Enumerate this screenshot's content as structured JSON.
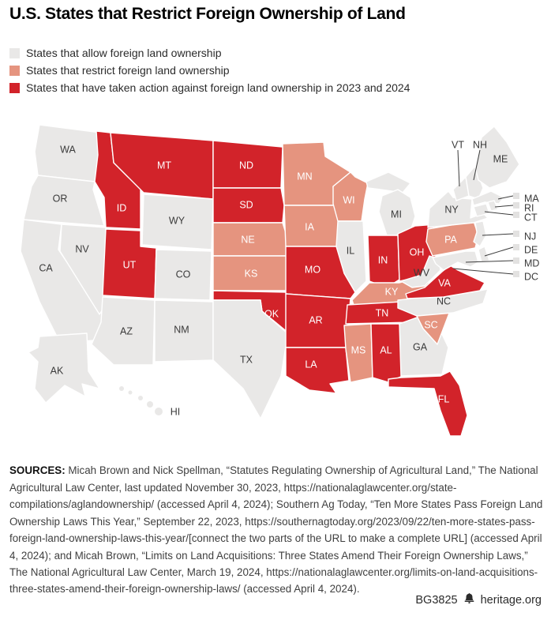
{
  "title": "U.S. States that Restrict Foreign Ownership of Land",
  "legend": {
    "items": [
      {
        "key": "allow",
        "label": "States that allow foreign land ownership",
        "color": "#e9e8e7",
        "text_color": "#3a3a3a"
      },
      {
        "key": "restrict",
        "label": "States that restrict foreign land ownership",
        "color": "#e5947f",
        "text_color": "#ffffff"
      },
      {
        "key": "action",
        "label": "States that have taken action against foreign land ownership in 2023 and 2024",
        "color": "#d2232a",
        "text_color": "#ffffff"
      }
    ]
  },
  "map": {
    "states": [
      {
        "abbr": "WA",
        "category": "allow"
      },
      {
        "abbr": "OR",
        "category": "allow"
      },
      {
        "abbr": "CA",
        "category": "allow"
      },
      {
        "abbr": "NV",
        "category": "allow"
      },
      {
        "abbr": "ID",
        "category": "action"
      },
      {
        "abbr": "MT",
        "category": "action"
      },
      {
        "abbr": "WY",
        "category": "allow"
      },
      {
        "abbr": "UT",
        "category": "action"
      },
      {
        "abbr": "CO",
        "category": "allow"
      },
      {
        "abbr": "AZ",
        "category": "allow"
      },
      {
        "abbr": "NM",
        "category": "allow"
      },
      {
        "abbr": "AK",
        "category": "allow"
      },
      {
        "abbr": "HI",
        "category": "allow"
      },
      {
        "abbr": "ND",
        "category": "action"
      },
      {
        "abbr": "SD",
        "category": "action"
      },
      {
        "abbr": "NE",
        "category": "restrict"
      },
      {
        "abbr": "KS",
        "category": "restrict"
      },
      {
        "abbr": "OK",
        "category": "action"
      },
      {
        "abbr": "TX",
        "category": "allow"
      },
      {
        "abbr": "MN",
        "category": "restrict"
      },
      {
        "abbr": "IA",
        "category": "restrict"
      },
      {
        "abbr": "MO",
        "category": "action"
      },
      {
        "abbr": "AR",
        "category": "action"
      },
      {
        "abbr": "LA",
        "category": "action"
      },
      {
        "abbr": "WI",
        "category": "restrict"
      },
      {
        "abbr": "IL",
        "category": "allow"
      },
      {
        "abbr": "MS",
        "category": "restrict"
      },
      {
        "abbr": "MI",
        "category": "allow"
      },
      {
        "abbr": "IN",
        "category": "action"
      },
      {
        "abbr": "OH",
        "category": "action"
      },
      {
        "abbr": "KY",
        "category": "restrict"
      },
      {
        "abbr": "TN",
        "category": "action"
      },
      {
        "abbr": "AL",
        "category": "action"
      },
      {
        "abbr": "GA",
        "category": "allow"
      },
      {
        "abbr": "FL",
        "category": "action"
      },
      {
        "abbr": "SC",
        "category": "restrict"
      },
      {
        "abbr": "NC",
        "category": "allow"
      },
      {
        "abbr": "VA",
        "category": "action"
      },
      {
        "abbr": "WV",
        "category": "allow"
      },
      {
        "abbr": "PA",
        "category": "restrict"
      },
      {
        "abbr": "NY",
        "category": "allow"
      },
      {
        "abbr": "NJ",
        "category": "allow"
      },
      {
        "abbr": "DE",
        "category": "allow"
      },
      {
        "abbr": "MD",
        "category": "allow"
      },
      {
        "abbr": "VT",
        "category": "allow"
      },
      {
        "abbr": "NH",
        "category": "allow"
      },
      {
        "abbr": "MA",
        "category": "allow"
      },
      {
        "abbr": "CT",
        "category": "allow"
      },
      {
        "abbr": "RI",
        "category": "allow"
      },
      {
        "abbr": "ME",
        "category": "allow"
      },
      {
        "abbr": "DC",
        "category": "allow"
      }
    ],
    "callouts_top": [
      "VT",
      "NH"
    ],
    "callouts_right": [
      "MA",
      "RI",
      "CT",
      "NJ",
      "DE",
      "MD",
      "DC"
    ],
    "callout_square_color": "#e3e2e1",
    "callout_line_color": "#3c3c3c"
  },
  "sources": {
    "label": "SOURCES:",
    "text": " Micah Brown and Nick Spellman, “Statutes Regulating Ownership of Agricultural Land,” The National Agricultural Law Center, last updated November 30, 2023, https://nationalaglawcenter.org/state-compilations/aglandownership/ (accessed April 4, 2024); Southern Ag Today, “Ten More States Pass Foreign Land Ownership Laws This Year,” September 22, 2023, https://southernagtoday.org/2023/09/22/ten-more-states-pass-foreign-land-ownership-laws-this-year/[connect the two parts of the URL to make a complete URL] (accessed April 4, 2024); and Micah Brown, “Limits on Land Acquisitions: Three States Amend Their Foreign Ownership Laws,” The National Agricultural Law Center, March 19, 2024, https://nationalaglawcenter.org/limits-on-land-acquisitions-three-states-amend-their-foreign-ownership-laws/ (accessed April 4, 2024)."
  },
  "footer": {
    "id": "BG3825",
    "site": "heritage.org",
    "logo_icon": "liberty-bell-icon"
  }
}
